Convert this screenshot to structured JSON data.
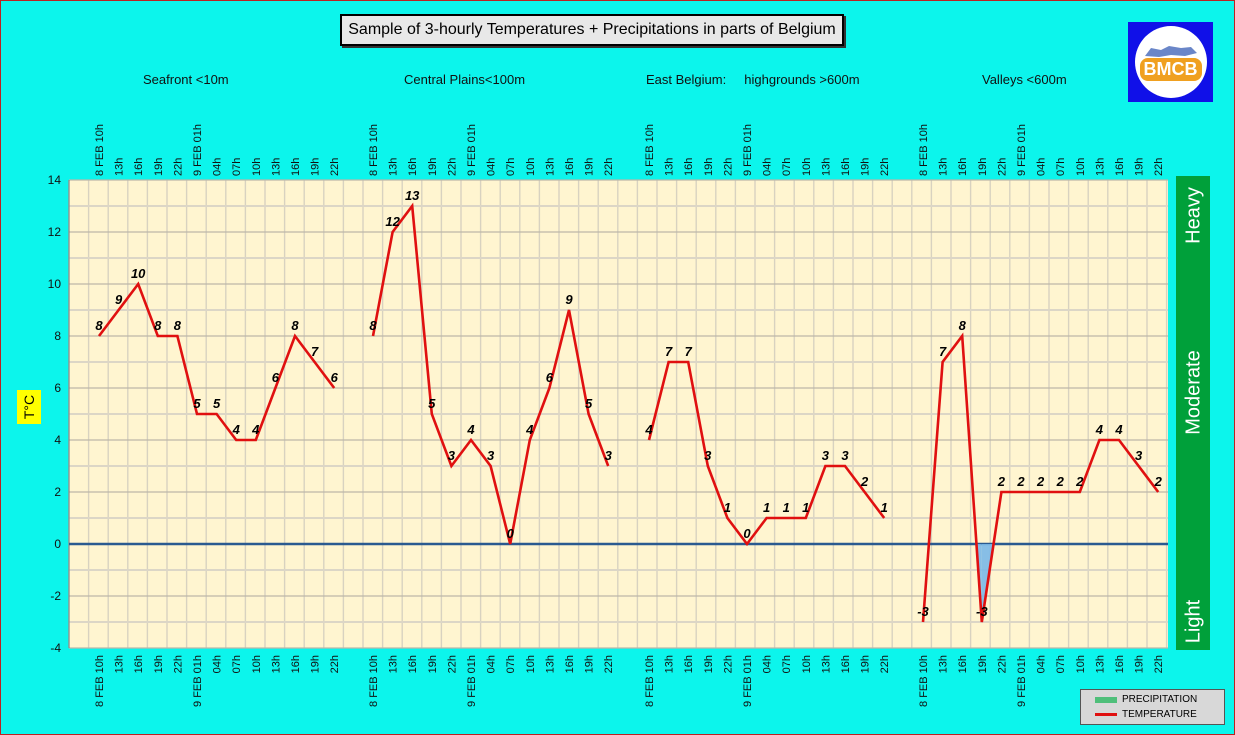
{
  "title": "Sample of 3-hourly Temperatures + Precipitations in parts of Belgium",
  "logo": {
    "text": "BMCB",
    "icon": "belgium-map-logo"
  },
  "colors": {
    "background": "#0cf5ec",
    "plot": "#fff5d0",
    "temperature": "#e01010",
    "precipitation": "#4fbf7a",
    "below_zero_fill": "#7ab8e8",
    "zero_line": "#2a5a90",
    "intensity_bar": "#00a03a"
  },
  "intensity_bar": {
    "top": "Heavy",
    "middle": "Moderate",
    "bottom": "Light"
  },
  "legend": {
    "precipitation": "PRECIPITATION",
    "temperature": "TEMPERATURE"
  },
  "chart_data": {
    "type": "line",
    "title": "Sample of 3-hourly Temperatures + Precipitations in parts of Belgium",
    "ylabel": "T°C",
    "xlabel": "",
    "ylim": [
      -4,
      14
    ],
    "yticks": [
      -4,
      -2,
      0,
      2,
      4,
      6,
      8,
      10,
      12,
      14
    ],
    "grid": true,
    "legend_position": "bottom-right",
    "regions": [
      {
        "name": "Seafront <10m",
        "ticks": [
          "8 FEB 10h",
          "13h",
          "16h",
          "19h",
          "22h",
          "9 FEB 01h",
          "04h",
          "07h",
          "10h",
          "13h",
          "16h",
          "19h",
          "22h"
        ],
        "temperature": [
          8,
          9,
          10,
          8,
          8,
          5,
          5,
          4,
          4,
          6,
          8,
          7,
          6
        ]
      },
      {
        "name": "Central Plains<100m",
        "ticks": [
          "8 FEB 10h",
          "13h",
          "16h",
          "19h",
          "22h",
          "9 FEB 01h",
          "04h",
          "07h",
          "10h",
          "13h",
          "16h",
          "19h",
          "22h"
        ],
        "temperature": [
          8,
          12,
          13,
          5,
          3,
          4,
          3,
          0,
          4,
          6,
          9,
          5,
          3
        ]
      },
      {
        "name": "East Belgium:     highgrounds >600m",
        "ticks": [
          "8 FEB 10h",
          "13h",
          "16h",
          "19h",
          "22h",
          "9 FEB 01h",
          "04h",
          "07h",
          "10h",
          "13h",
          "16h",
          "19h",
          "22h"
        ],
        "temperature": [
          4,
          7,
          7,
          3,
          1,
          0,
          1,
          1,
          1,
          3,
          3,
          2,
          1
        ]
      },
      {
        "name": "Valleys <600m",
        "ticks": [
          "8 FEB 10h",
          "13h",
          "16h",
          "19h",
          "22h",
          "9 FEB 01h",
          "04h",
          "07h",
          "10h",
          "13h",
          "16h",
          "19h",
          "22h"
        ],
        "temperature": [
          -3,
          7,
          8,
          -3,
          2,
          2,
          2,
          2,
          2,
          4,
          4,
          3,
          2
        ]
      }
    ],
    "series": [
      {
        "name": "PRECIPITATION",
        "values": []
      },
      {
        "name": "TEMPERATURE",
        "values": "per region"
      }
    ]
  }
}
